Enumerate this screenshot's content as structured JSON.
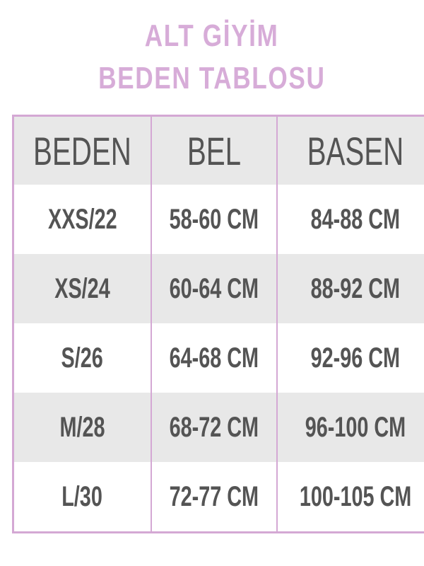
{
  "title": {
    "line1": "ALT GİYİM",
    "line2": "BEDEN TABLOSU"
  },
  "colors": {
    "accent": "#d7acd8",
    "border": "#d4a8d4",
    "stripe": "#e8e8e8",
    "text": "#545454"
  },
  "table": {
    "headers": [
      "BEDEN",
      "BEL",
      "BASEN"
    ],
    "rows": [
      [
        "XXS/22",
        "58-60 CM",
        "84-88 CM"
      ],
      [
        "XS/24",
        "60-64 CM",
        "88-92 CM"
      ],
      [
        "S/26",
        "64-68 CM",
        "92-96 CM"
      ],
      [
        "M/28",
        "68-72 CM",
        "96-100 CM"
      ],
      [
        "L/30",
        "72-77 CM",
        "100-105 CM"
      ]
    ]
  }
}
